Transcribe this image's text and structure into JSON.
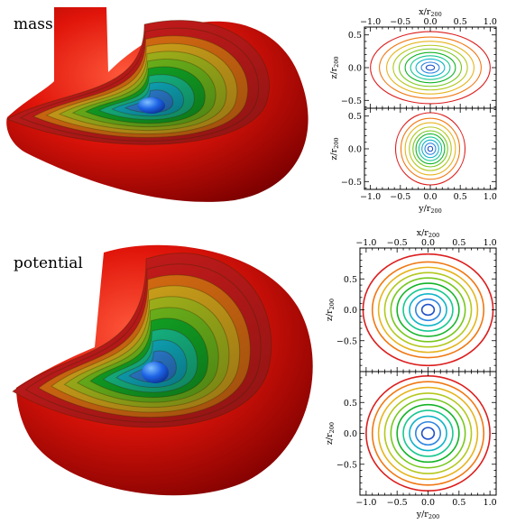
{
  "panel_labels": {
    "top": "mass",
    "bottom": "potential"
  },
  "chart_data": [
    {
      "type": "contour",
      "title": "mass",
      "xlabel_top": {
        "main": "x/r",
        "sub": "200"
      },
      "ylabel": {
        "main": "z/r",
        "sub": "200"
      },
      "xlim": [
        -1.1,
        1.1
      ],
      "ylim": [
        -0.62,
        0.62
      ],
      "xticks": [
        "−1.0",
        "−0.5",
        "0.0",
        "0.5",
        "1.0"
      ],
      "yticks": [
        "−0.5",
        "0.0",
        "0.5"
      ],
      "contours": {
        "semi_major": [
          0.07,
          0.15,
          0.24,
          0.33,
          0.42,
          0.52,
          0.62,
          0.73,
          0.85,
          1.0
        ],
        "axis_ratio": 0.55
      }
    },
    {
      "type": "contour",
      "xlabel_bottom": {
        "main": "y/r",
        "sub": "200"
      },
      "ylabel": {
        "main": "z/r",
        "sub": "200"
      },
      "xlim": [
        -1.1,
        1.1
      ],
      "ylim": [
        -0.62,
        0.62
      ],
      "xticks": [
        "−1.0",
        "−0.5",
        "0.0",
        "0.5",
        "1.0"
      ],
      "yticks": [
        "−0.5",
        "0.0",
        "0.5"
      ],
      "contours": {
        "semi_major": [
          0.04,
          0.09,
          0.14,
          0.19,
          0.24,
          0.29,
          0.35,
          0.42,
          0.49,
          0.58
        ],
        "axis_ratio": 0.95
      }
    },
    {
      "type": "contour",
      "title": "potential",
      "xlabel_top": {
        "main": "x/r",
        "sub": "200"
      },
      "ylabel": {
        "main": "z/r",
        "sub": "200"
      },
      "xlim": [
        -1.1,
        1.1
      ],
      "ylim": [
        -1.0,
        1.0
      ],
      "xticks": [
        "−1.0",
        "−0.5",
        "0.0",
        "0.5",
        "1.0"
      ],
      "yticks": [
        "−0.5",
        "0.0",
        "0.5"
      ],
      "contours": {
        "semi_major": [
          0.1,
          0.2,
          0.3,
          0.4,
          0.5,
          0.6,
          0.7,
          0.8,
          0.9,
          1.05
        ],
        "axis_ratio": 0.86
      }
    },
    {
      "type": "contour",
      "xlabel_bottom": {
        "main": "y/r",
        "sub": "200"
      },
      "ylabel": {
        "main": "z/r",
        "sub": "200"
      },
      "xlim": [
        -1.1,
        1.1
      ],
      "ylim": [
        -1.0,
        1.0
      ],
      "xticks": [
        "−1.0",
        "−0.5",
        "0.0",
        "0.5",
        "1.0"
      ],
      "yticks": [
        "−0.5",
        "0.0",
        "0.5"
      ],
      "contours": {
        "semi_major": [
          0.1,
          0.2,
          0.3,
          0.4,
          0.5,
          0.6,
          0.7,
          0.8,
          0.9,
          1.0
        ],
        "axis_ratio": 0.93
      }
    }
  ],
  "colors": {
    "levels": [
      "#1e50c8",
      "#2f86e0",
      "#10b4c8",
      "#18c890",
      "#14b428",
      "#78c81e",
      "#b4c81e",
      "#e6b41e",
      "#f07814",
      "#dc1e1e"
    ],
    "shell": "#c81414",
    "core": "#1e64e6"
  }
}
